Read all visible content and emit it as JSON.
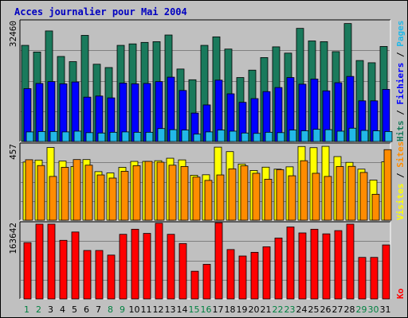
{
  "chart_data": {
    "type": "bar",
    "title": "Acces journalier pour Mai 2004",
    "categories": [
      "1",
      "2",
      "3",
      "4",
      "5",
      "6",
      "7",
      "8",
      "9",
      "10",
      "11",
      "12",
      "13",
      "14",
      "15",
      "16",
      "17",
      "18",
      "19",
      "20",
      "21",
      "22",
      "23",
      "24",
      "25",
      "26",
      "27",
      "28",
      "29",
      "30",
      "31"
    ],
    "weekend_days": [
      "1",
      "2",
      "8",
      "9",
      "15",
      "16",
      "22",
      "23",
      "29",
      "30"
    ],
    "colors": {
      "title": "#0000c0",
      "background": "#c0c0c0",
      "weekday_label": "#000000",
      "weekend_label": "#008040",
      "hits": "#1a7a5c",
      "files": "#0000ff",
      "pages": "#22b8e8",
      "visits": "#ffff00",
      "sites": "#ff8c00",
      "kb": "#ff0000"
    },
    "panels": [
      {
        "id": "top",
        "ymax_label": "32460",
        "ylim": [
          0,
          32460
        ],
        "legend": [
          {
            "text": "Hits",
            "color": "#1a7a5c"
          },
          {
            "text": " / ",
            "color": "#000000"
          },
          {
            "text": "Fichiers",
            "color": "#0000ff"
          },
          {
            "text": " / ",
            "color": "#000000"
          },
          {
            "text": "Pages",
            "color": "#22b8e8"
          }
        ],
        "series": [
          {
            "name": "Hits",
            "color": "#1a7a5c",
            "values": [
              26000,
              24200,
              29900,
              23000,
              21600,
              28700,
              20900,
              20000,
              26000,
              26400,
              26800,
              27000,
              28800,
              19600,
              16700,
              26000,
              28300,
              25000,
              17300,
              19300,
              22700,
              25600,
              23900,
              30600,
              27200,
              27000,
              24300,
              31900,
              21900,
              21300,
              25700
            ]
          },
          {
            "name": "Fichiers",
            "color": "#0000ff",
            "values": [
              14300,
              15700,
              16200,
              15600,
              16100,
              12000,
              12300,
              11800,
              15800,
              15600,
              15700,
              16200,
              17400,
              13800,
              7700,
              9900,
              16600,
              12900,
              10600,
              11600,
              13500,
              14600,
              17300,
              15500,
              16900,
              13700,
              15900,
              17600,
              11000,
              11000,
              14100
            ]
          },
          {
            "name": "Pages",
            "color": "#22b8e8",
            "values": [
              2600,
              2700,
              2700,
              2600,
              2800,
              2400,
              2300,
              2500,
              2600,
              2500,
              2500,
              3500,
              3200,
              3100,
              2000,
              2600,
              3100,
              2800,
              2300,
              2200,
              2500,
              2400,
              3100,
              2900,
              3300,
              3200,
              2800,
              3600,
              3000,
              2900,
              2700
            ]
          }
        ]
      },
      {
        "id": "middle",
        "ymax_label": "457",
        "ylim": [
          0,
          457
        ],
        "legend": [
          {
            "text": "Visites",
            "color": "#ffff00"
          },
          {
            "text": " / ",
            "color": "#000000"
          },
          {
            "text": "Sites",
            "color": "#ff8c00"
          }
        ],
        "series": [
          {
            "name": "Visites",
            "color": "#ffff00",
            "values": [
              352,
              364,
              440,
              358,
              325,
              367,
              294,
              286,
              320,
              356,
              356,
              360,
              375,
              365,
              272,
              275,
              442,
              415,
              340,
              301,
              321,
              309,
              323,
              446,
              439,
              447,
              385,
              350,
              309,
              243,
              354
            ]
          },
          {
            "name": "Sites",
            "color": "#ff8c00",
            "values": [
              366,
              331,
              265,
              320,
              367,
              333,
              274,
              255,
              296,
              330,
              356,
              351,
              333,
              325,
              261,
              241,
              274,
              311,
              329,
              284,
              248,
              306,
              269,
              360,
              284,
              265,
              325,
              326,
              289,
              157,
              427
            ]
          }
        ]
      },
      {
        "id": "bottom",
        "ymax_label": "163642",
        "ylim": [
          0,
          163642
        ],
        "legend": [
          {
            "text": "Ko",
            "color": "#ff0000"
          }
        ],
        "series": [
          {
            "name": "Ko",
            "color": "#ff0000",
            "values": [
              122000,
              162000,
              162000,
              127000,
              145000,
              105000,
              105000,
              95000,
              140000,
              151000,
              142000,
              164000,
              140000,
              120000,
              60000,
              75000,
              165000,
              107000,
              93000,
              101000,
              113000,
              132000,
              156000,
              143000,
              151000,
              141000,
              148000,
              162000,
              90000,
              90000,
              117000
            ]
          }
        ]
      }
    ]
  }
}
